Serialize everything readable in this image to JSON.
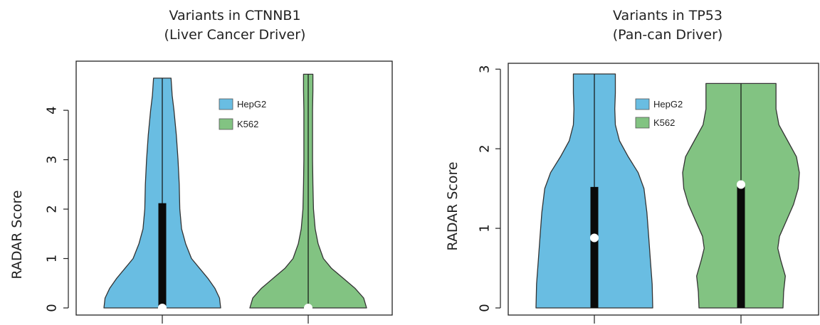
{
  "chart_data": [
    {
      "type": "violin",
      "title": "Variants in CTNNB1",
      "subtitle": "(Liver Cancer Driver)",
      "ylabel": "RADAR Score",
      "ylim": [
        0,
        4.75
      ],
      "yticks": [
        0,
        1,
        2,
        3,
        4
      ],
      "legend": {
        "placement": "top-center",
        "entries": [
          "HepG2",
          "K562"
        ]
      },
      "series": [
        {
          "name": "HepG2",
          "color": "#69bde2",
          "min": 0,
          "max": 4.65,
          "q1": 0,
          "q3": 2.12,
          "median": 0,
          "density": [
            [
              0,
              1.0
            ],
            [
              0.2,
              0.98
            ],
            [
              0.4,
              0.9
            ],
            [
              0.6,
              0.78
            ],
            [
              0.8,
              0.64
            ],
            [
              1.0,
              0.5
            ],
            [
              1.3,
              0.4
            ],
            [
              1.6,
              0.33
            ],
            [
              2.0,
              0.3
            ],
            [
              2.5,
              0.29
            ],
            [
              3.0,
              0.27
            ],
            [
              3.5,
              0.24
            ],
            [
              4.0,
              0.2
            ],
            [
              4.3,
              0.17
            ],
            [
              4.65,
              0.15
            ]
          ]
        },
        {
          "name": "K562",
          "color": "#82c382",
          "min": 0,
          "max": 4.73,
          "q1": 0,
          "q3": 0,
          "median": 0,
          "density": [
            [
              0,
              1.0
            ],
            [
              0.2,
              0.95
            ],
            [
              0.4,
              0.8
            ],
            [
              0.6,
              0.6
            ],
            [
              0.8,
              0.4
            ],
            [
              1.0,
              0.26
            ],
            [
              1.3,
              0.17
            ],
            [
              1.6,
              0.12
            ],
            [
              2.0,
              0.09
            ],
            [
              2.5,
              0.08
            ],
            [
              3.0,
              0.075
            ],
            [
              3.5,
              0.075
            ],
            [
              4.0,
              0.075
            ],
            [
              4.4,
              0.08
            ],
            [
              4.73,
              0.08
            ]
          ]
        }
      ]
    },
    {
      "type": "violin",
      "title": "Variants in TP53",
      "subtitle": "(Pan-can Driver)",
      "ylabel": "RADAR Score",
      "ylim": [
        0,
        3.02
      ],
      "yticks": [
        0,
        1,
        2,
        3
      ],
      "legend": {
        "placement": "top-center",
        "entries": [
          "HepG2",
          "K562"
        ]
      },
      "series": [
        {
          "name": "HepG2",
          "color": "#69bde2",
          "min": 0,
          "max": 2.94,
          "q1": 0,
          "q3": 1.52,
          "median": 0.88,
          "density": [
            [
              0,
              1.0
            ],
            [
              0.3,
              0.99
            ],
            [
              0.6,
              0.96
            ],
            [
              0.9,
              0.93
            ],
            [
              1.2,
              0.9
            ],
            [
              1.5,
              0.85
            ],
            [
              1.7,
              0.75
            ],
            [
              1.9,
              0.58
            ],
            [
              2.1,
              0.43
            ],
            [
              2.3,
              0.36
            ],
            [
              2.5,
              0.35
            ],
            [
              2.7,
              0.36
            ],
            [
              2.94,
              0.36
            ]
          ]
        },
        {
          "name": "K562",
          "color": "#82c382",
          "min": 0,
          "max": 2.82,
          "q1": 0,
          "q3": 1.55,
          "median": 1.55,
          "density": [
            [
              0,
              0.72
            ],
            [
              0.2,
              0.73
            ],
            [
              0.4,
              0.76
            ],
            [
              0.6,
              0.68
            ],
            [
              0.75,
              0.63
            ],
            [
              0.9,
              0.66
            ],
            [
              1.1,
              0.78
            ],
            [
              1.3,
              0.9
            ],
            [
              1.5,
              0.98
            ],
            [
              1.7,
              1.0
            ],
            [
              1.9,
              0.95
            ],
            [
              2.1,
              0.8
            ],
            [
              2.3,
              0.65
            ],
            [
              2.5,
              0.6
            ],
            [
              2.7,
              0.6
            ],
            [
              2.82,
              0.6
            ]
          ]
        }
      ]
    }
  ]
}
